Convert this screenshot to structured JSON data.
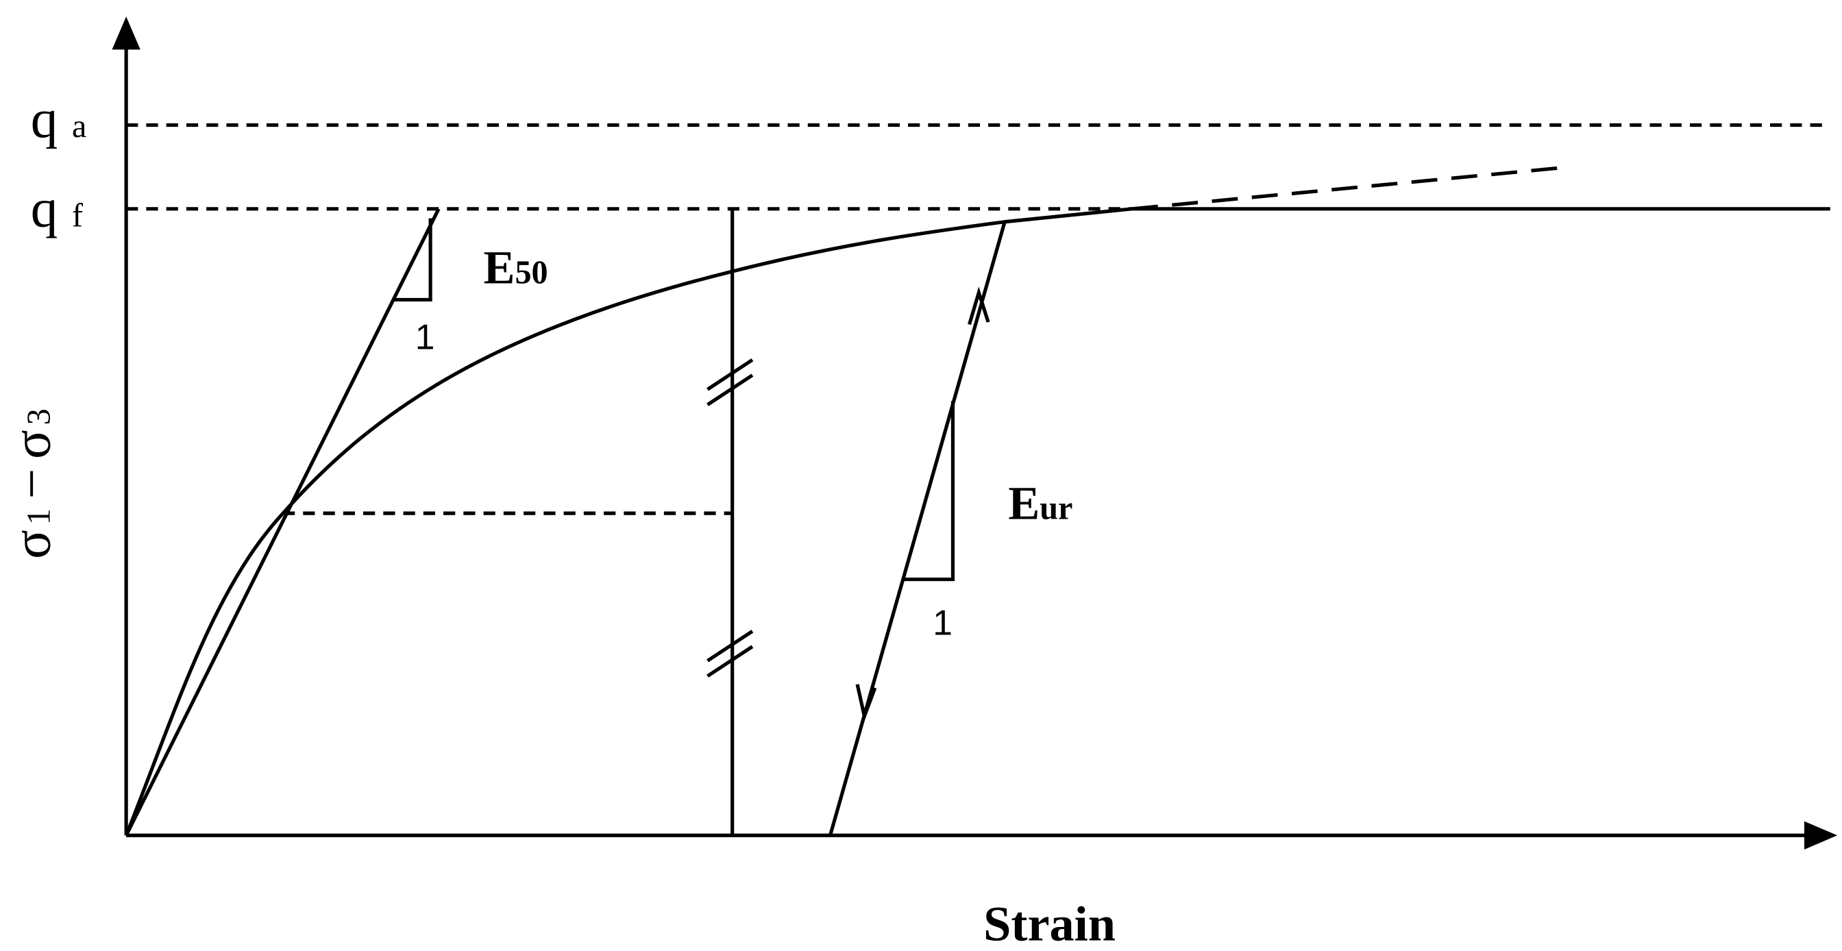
{
  "axes": {
    "x_label": "Strain",
    "y_label": {
      "sigma_1": "σ",
      "sub_1": "1",
      "minus": "−",
      "sigma_3": "σ",
      "sub_3": "3"
    }
  },
  "levels": [
    {
      "symbol": "q",
      "subscript": "a"
    },
    {
      "symbol": "q",
      "subscript": "f"
    }
  ],
  "moduli": [
    {
      "symbol": "E",
      "subscript": "50",
      "run": "1"
    },
    {
      "symbol": "E",
      "subscript": "ur",
      "run": "1"
    }
  ]
}
